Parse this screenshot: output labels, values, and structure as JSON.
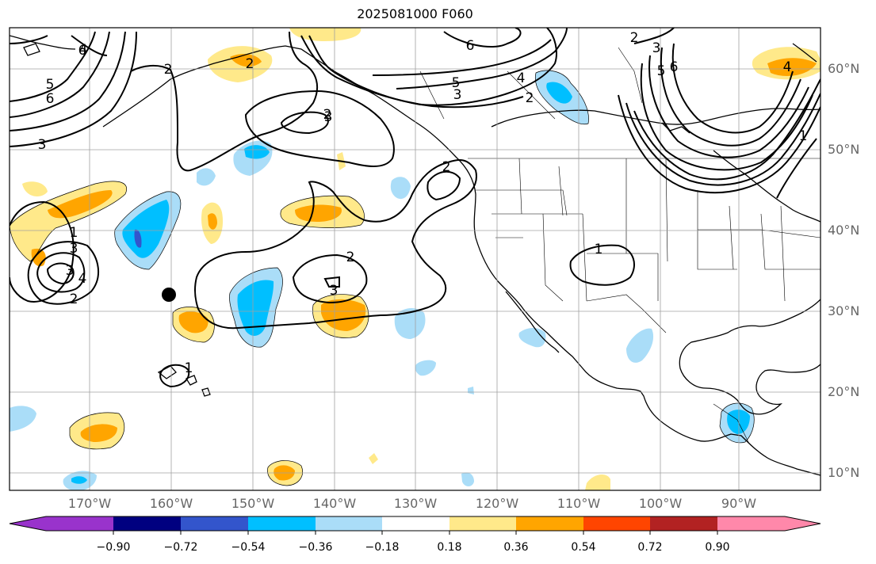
{
  "title": "2025081000 F060",
  "longitude_labels": [
    "170°W",
    "160°W",
    "150°W",
    "140°W",
    "130°W",
    "120°W",
    "110°W",
    "100°W",
    "90°W"
  ],
  "latitude_labels": [
    "60°N",
    "50°N",
    "40°N",
    "30°N",
    "20°N",
    "10°N"
  ],
  "colorbar": {
    "ticks": [
      "−0.90",
      "−0.72",
      "−0.54",
      "−0.36",
      "−0.18",
      "0.18",
      "0.36",
      "0.54",
      "0.72",
      "0.90"
    ],
    "colors": [
      "#9933cc",
      "#000080",
      "#3355cc",
      "#00bfff",
      "#aaddf8",
      "#ffffff",
      "#ffe98a",
      "#ffa500",
      "#ff4500",
      "#b22222",
      "#ff88aa"
    ]
  },
  "contour_labels": [
    "6",
    "4",
    "2",
    "5",
    "6",
    "3",
    "2",
    "6",
    "2",
    "5",
    "2",
    "3",
    "4",
    "2",
    "3",
    "6",
    "5",
    "4",
    "1",
    "2",
    "3",
    "1",
    "3",
    "4",
    "2",
    "2",
    "3",
    "1",
    "1",
    "3",
    "1"
  ],
  "fill_colors": {
    "light_yellow": "#ffe98a",
    "orange": "#ffa500",
    "light_blue": "#aaddf8",
    "blue": "#00bfff",
    "dark_blue": "#3355cc"
  }
}
